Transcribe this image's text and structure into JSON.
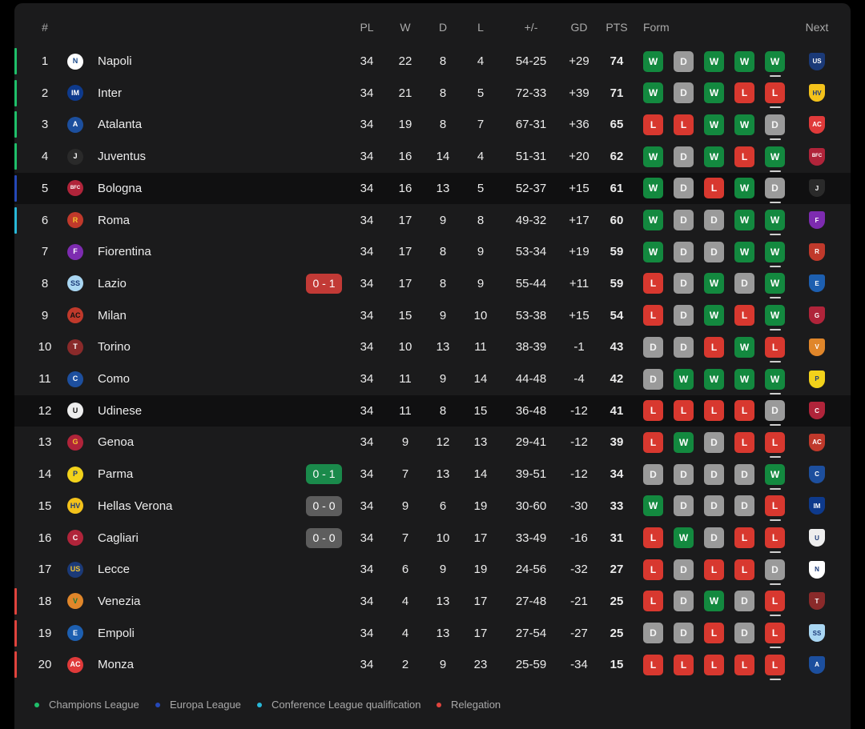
{
  "headers": {
    "rank": "#",
    "pl": "PL",
    "w": "W",
    "d": "D",
    "l": "L",
    "score": "+/-",
    "gd": "GD",
    "pts": "PTS",
    "form": "Form",
    "next": "Next"
  },
  "colors": {
    "champions": "#1fbf6a",
    "europa": "#2548b8",
    "conference": "#28b8d8",
    "relegation": "#e0443d"
  },
  "rows": [
    {
      "rank": "1",
      "name": "Napoli",
      "crest": "N",
      "crest_color": "#ffffff",
      "crest_fg": "#1a4a8a",
      "zone": "champions",
      "live": "",
      "live_type": "",
      "pl": "34",
      "w": "22",
      "d": "8",
      "l": "4",
      "score": "54-25",
      "gd": "+29",
      "pts": "74",
      "form": [
        "W",
        "D",
        "W",
        "W",
        "W"
      ],
      "next": "lecce-crest",
      "next_color": "#1b3a78",
      "next_text": "US",
      "hl": false
    },
    {
      "rank": "2",
      "name": "Inter",
      "crest": "IM",
      "crest_color": "#0e3a8c",
      "crest_fg": "#ffffff",
      "zone": "champions",
      "live": "",
      "live_type": "",
      "pl": "34",
      "w": "21",
      "d": "8",
      "l": "5",
      "score": "72-33",
      "gd": "+39",
      "pts": "71",
      "form": [
        "W",
        "D",
        "W",
        "L",
        "L"
      ],
      "next": "verona-crest",
      "next_color": "#f3c21b",
      "next_text": "HV",
      "hl": false
    },
    {
      "rank": "3",
      "name": "Atalanta",
      "crest": "A",
      "crest_color": "#1c4f9e",
      "crest_fg": "#ffffff",
      "zone": "champions",
      "live": "",
      "live_type": "",
      "pl": "34",
      "w": "19",
      "d": "8",
      "l": "7",
      "score": "67-31",
      "gd": "+36",
      "pts": "65",
      "form": [
        "L",
        "L",
        "W",
        "W",
        "D"
      ],
      "next": "monza-crest",
      "next_color": "#e03a3a",
      "next_text": "AC",
      "hl": false
    },
    {
      "rank": "4",
      "name": "Juventus",
      "crest": "J",
      "crest_color": "#2a2a2a",
      "crest_fg": "#ffffff",
      "zone": "champions",
      "live": "",
      "live_type": "",
      "pl": "34",
      "w": "16",
      "d": "14",
      "l": "4",
      "score": "51-31",
      "gd": "+20",
      "pts": "62",
      "form": [
        "W",
        "D",
        "W",
        "L",
        "W"
      ],
      "next": "bologna-crest",
      "next_color": "#b0243a",
      "next_text": "BFC",
      "hl": false
    },
    {
      "rank": "5",
      "name": "Bologna",
      "crest": "BFC",
      "crest_color": "#b0243a",
      "crest_fg": "#ffffff",
      "zone": "europa",
      "live": "",
      "live_type": "",
      "pl": "34",
      "w": "16",
      "d": "13",
      "l": "5",
      "score": "52-37",
      "gd": "+15",
      "pts": "61",
      "form": [
        "W",
        "D",
        "L",
        "W",
        "D"
      ],
      "next": "juventus-crest",
      "next_color": "#2a2a2a",
      "next_text": "J",
      "hl": true
    },
    {
      "rank": "6",
      "name": "Roma",
      "crest": "R",
      "crest_color": "#c0392b",
      "crest_fg": "#f4c430",
      "zone": "conference",
      "live": "",
      "live_type": "",
      "pl": "34",
      "w": "17",
      "d": "9",
      "l": "8",
      "score": "49-32",
      "gd": "+17",
      "pts": "60",
      "form": [
        "W",
        "D",
        "D",
        "W",
        "W"
      ],
      "next": "fiorentina-crest",
      "next_color": "#7d2bb0",
      "next_text": "F",
      "hl": false
    },
    {
      "rank": "7",
      "name": "Fiorentina",
      "crest": "F",
      "crest_color": "#7d2bb0",
      "crest_fg": "#ffffff",
      "zone": "",
      "live": "",
      "live_type": "",
      "pl": "34",
      "w": "17",
      "d": "8",
      "l": "9",
      "score": "53-34",
      "gd": "+19",
      "pts": "59",
      "form": [
        "W",
        "D",
        "D",
        "W",
        "W"
      ],
      "next": "roma-crest",
      "next_color": "#c0392b",
      "next_text": "R",
      "hl": false
    },
    {
      "rank": "8",
      "name": "Lazio",
      "crest": "SS",
      "crest_color": "#a9d6f2",
      "crest_fg": "#1b3a78",
      "zone": "",
      "live": "0 - 1",
      "live_type": "l",
      "pl": "34",
      "w": "17",
      "d": "8",
      "l": "9",
      "score": "55-44",
      "gd": "+11",
      "pts": "59",
      "form": [
        "L",
        "D",
        "W",
        "D",
        "W"
      ],
      "next": "empoli-crest",
      "next_color": "#1d5fb0",
      "next_text": "E",
      "hl": false
    },
    {
      "rank": "9",
      "name": "Milan",
      "crest": "AC",
      "crest_color": "#c0392b",
      "crest_fg": "#111111",
      "zone": "",
      "live": "",
      "live_type": "",
      "pl": "34",
      "w": "15",
      "d": "9",
      "l": "10",
      "score": "53-38",
      "gd": "+15",
      "pts": "54",
      "form": [
        "L",
        "D",
        "W",
        "L",
        "W"
      ],
      "next": "genoa-crest",
      "next_color": "#b0243a",
      "next_text": "G",
      "hl": false
    },
    {
      "rank": "10",
      "name": "Torino",
      "crest": "T",
      "crest_color": "#8a2a2a",
      "crest_fg": "#ffffff",
      "zone": "",
      "live": "",
      "live_type": "",
      "pl": "34",
      "w": "10",
      "d": "13",
      "l": "11",
      "score": "38-39",
      "gd": "-1",
      "pts": "43",
      "form": [
        "D",
        "D",
        "L",
        "W",
        "L"
      ],
      "next": "venezia-crest",
      "next_color": "#e0862a",
      "next_text": "V",
      "hl": false
    },
    {
      "rank": "11",
      "name": "Como",
      "crest": "C",
      "crest_color": "#1d4f9e",
      "crest_fg": "#ffffff",
      "zone": "",
      "live": "",
      "live_type": "",
      "pl": "34",
      "w": "11",
      "d": "9",
      "l": "14",
      "score": "44-48",
      "gd": "-4",
      "pts": "42",
      "form": [
        "D",
        "W",
        "W",
        "W",
        "W"
      ],
      "next": "parma-crest",
      "next_color": "#f2d21b",
      "next_text": "P",
      "hl": false
    },
    {
      "rank": "12",
      "name": "Udinese",
      "crest": "U",
      "crest_color": "#eeeeee",
      "crest_fg": "#111111",
      "zone": "",
      "live": "",
      "live_type": "",
      "pl": "34",
      "w": "11",
      "d": "8",
      "l": "15",
      "score": "36-48",
      "gd": "-12",
      "pts": "41",
      "form": [
        "L",
        "L",
        "L",
        "L",
        "D"
      ],
      "next": "cagliari-crest",
      "next_color": "#b0243a",
      "next_text": "C",
      "hl": true
    },
    {
      "rank": "13",
      "name": "Genoa",
      "crest": "G",
      "crest_color": "#b0243a",
      "crest_fg": "#f4c430",
      "zone": "",
      "live": "",
      "live_type": "",
      "pl": "34",
      "w": "9",
      "d": "12",
      "l": "13",
      "score": "29-41",
      "gd": "-12",
      "pts": "39",
      "form": [
        "L",
        "W",
        "D",
        "L",
        "L"
      ],
      "next": "milan-crest",
      "next_color": "#c0392b",
      "next_text": "AC",
      "hl": false
    },
    {
      "rank": "14",
      "name": "Parma",
      "crest": "P",
      "crest_color": "#f2d21b",
      "crest_fg": "#1b3a78",
      "zone": "",
      "live": "0 - 1",
      "live_type": "w",
      "pl": "34",
      "w": "7",
      "d": "13",
      "l": "14",
      "score": "39-51",
      "gd": "-12",
      "pts": "34",
      "form": [
        "D",
        "D",
        "D",
        "D",
        "W"
      ],
      "next": "como-crest",
      "next_color": "#1d4f9e",
      "next_text": "C",
      "hl": false
    },
    {
      "rank": "15",
      "name": "Hellas Verona",
      "crest": "HV",
      "crest_color": "#f3c21b",
      "crest_fg": "#1b3a78",
      "zone": "",
      "live": "0 - 0",
      "live_type": "d",
      "pl": "34",
      "w": "9",
      "d": "6",
      "l": "19",
      "score": "30-60",
      "gd": "-30",
      "pts": "33",
      "form": [
        "W",
        "D",
        "D",
        "D",
        "L"
      ],
      "next": "inter-crest",
      "next_color": "#0e3a8c",
      "next_text": "IM",
      "hl": false
    },
    {
      "rank": "16",
      "name": "Cagliari",
      "crest": "C",
      "crest_color": "#b0243a",
      "crest_fg": "#ffffff",
      "zone": "",
      "live": "0 - 0",
      "live_type": "d",
      "pl": "34",
      "w": "7",
      "d": "10",
      "l": "17",
      "score": "33-49",
      "gd": "-16",
      "pts": "31",
      "form": [
        "L",
        "W",
        "D",
        "L",
        "L"
      ],
      "next": "udinese-crest",
      "next_color": "#eeeeee",
      "next_text": "U",
      "hl": false
    },
    {
      "rank": "17",
      "name": "Lecce",
      "crest": "US",
      "crest_color": "#1b3a78",
      "crest_fg": "#f4c430",
      "zone": "",
      "live": "",
      "live_type": "",
      "pl": "34",
      "w": "6",
      "d": "9",
      "l": "19",
      "score": "24-56",
      "gd": "-32",
      "pts": "27",
      "form": [
        "L",
        "D",
        "L",
        "L",
        "D"
      ],
      "next": "napoli-crest",
      "next_color": "#ffffff",
      "next_text": "N",
      "hl": false
    },
    {
      "rank": "18",
      "name": "Venezia",
      "crest": "V",
      "crest_color": "#e0862a",
      "crest_fg": "#1a7a3a",
      "zone": "relegation",
      "live": "",
      "live_type": "",
      "pl": "34",
      "w": "4",
      "d": "13",
      "l": "17",
      "score": "27-48",
      "gd": "-21",
      "pts": "25",
      "form": [
        "L",
        "D",
        "W",
        "D",
        "L"
      ],
      "next": "torino-crest",
      "next_color": "#8a2a2a",
      "next_text": "T",
      "hl": false
    },
    {
      "rank": "19",
      "name": "Empoli",
      "crest": "E",
      "crest_color": "#1d5fb0",
      "crest_fg": "#ffffff",
      "zone": "relegation",
      "live": "",
      "live_type": "",
      "pl": "34",
      "w": "4",
      "d": "13",
      "l": "17",
      "score": "27-54",
      "gd": "-27",
      "pts": "25",
      "form": [
        "D",
        "D",
        "L",
        "D",
        "L"
      ],
      "next": "lazio-crest",
      "next_color": "#a9d6f2",
      "next_text": "SS",
      "hl": false
    },
    {
      "rank": "20",
      "name": "Monza",
      "crest": "AC",
      "crest_color": "#e03a3a",
      "crest_fg": "#ffffff",
      "zone": "relegation",
      "live": "",
      "live_type": "",
      "pl": "34",
      "w": "2",
      "d": "9",
      "l": "23",
      "score": "25-59",
      "gd": "-34",
      "pts": "15",
      "form": [
        "L",
        "L",
        "L",
        "L",
        "L"
      ],
      "next": "atalanta-crest",
      "next_color": "#1c4f9e",
      "next_text": "A",
      "hl": false
    }
  ],
  "legend": [
    {
      "label": "Champions League",
      "color": "#1fbf6a"
    },
    {
      "label": "Europa League",
      "color": "#2548b8"
    },
    {
      "label": "Conference League qualification",
      "color": "#28b8d8"
    },
    {
      "label": "Relegation",
      "color": "#e0443d"
    }
  ]
}
